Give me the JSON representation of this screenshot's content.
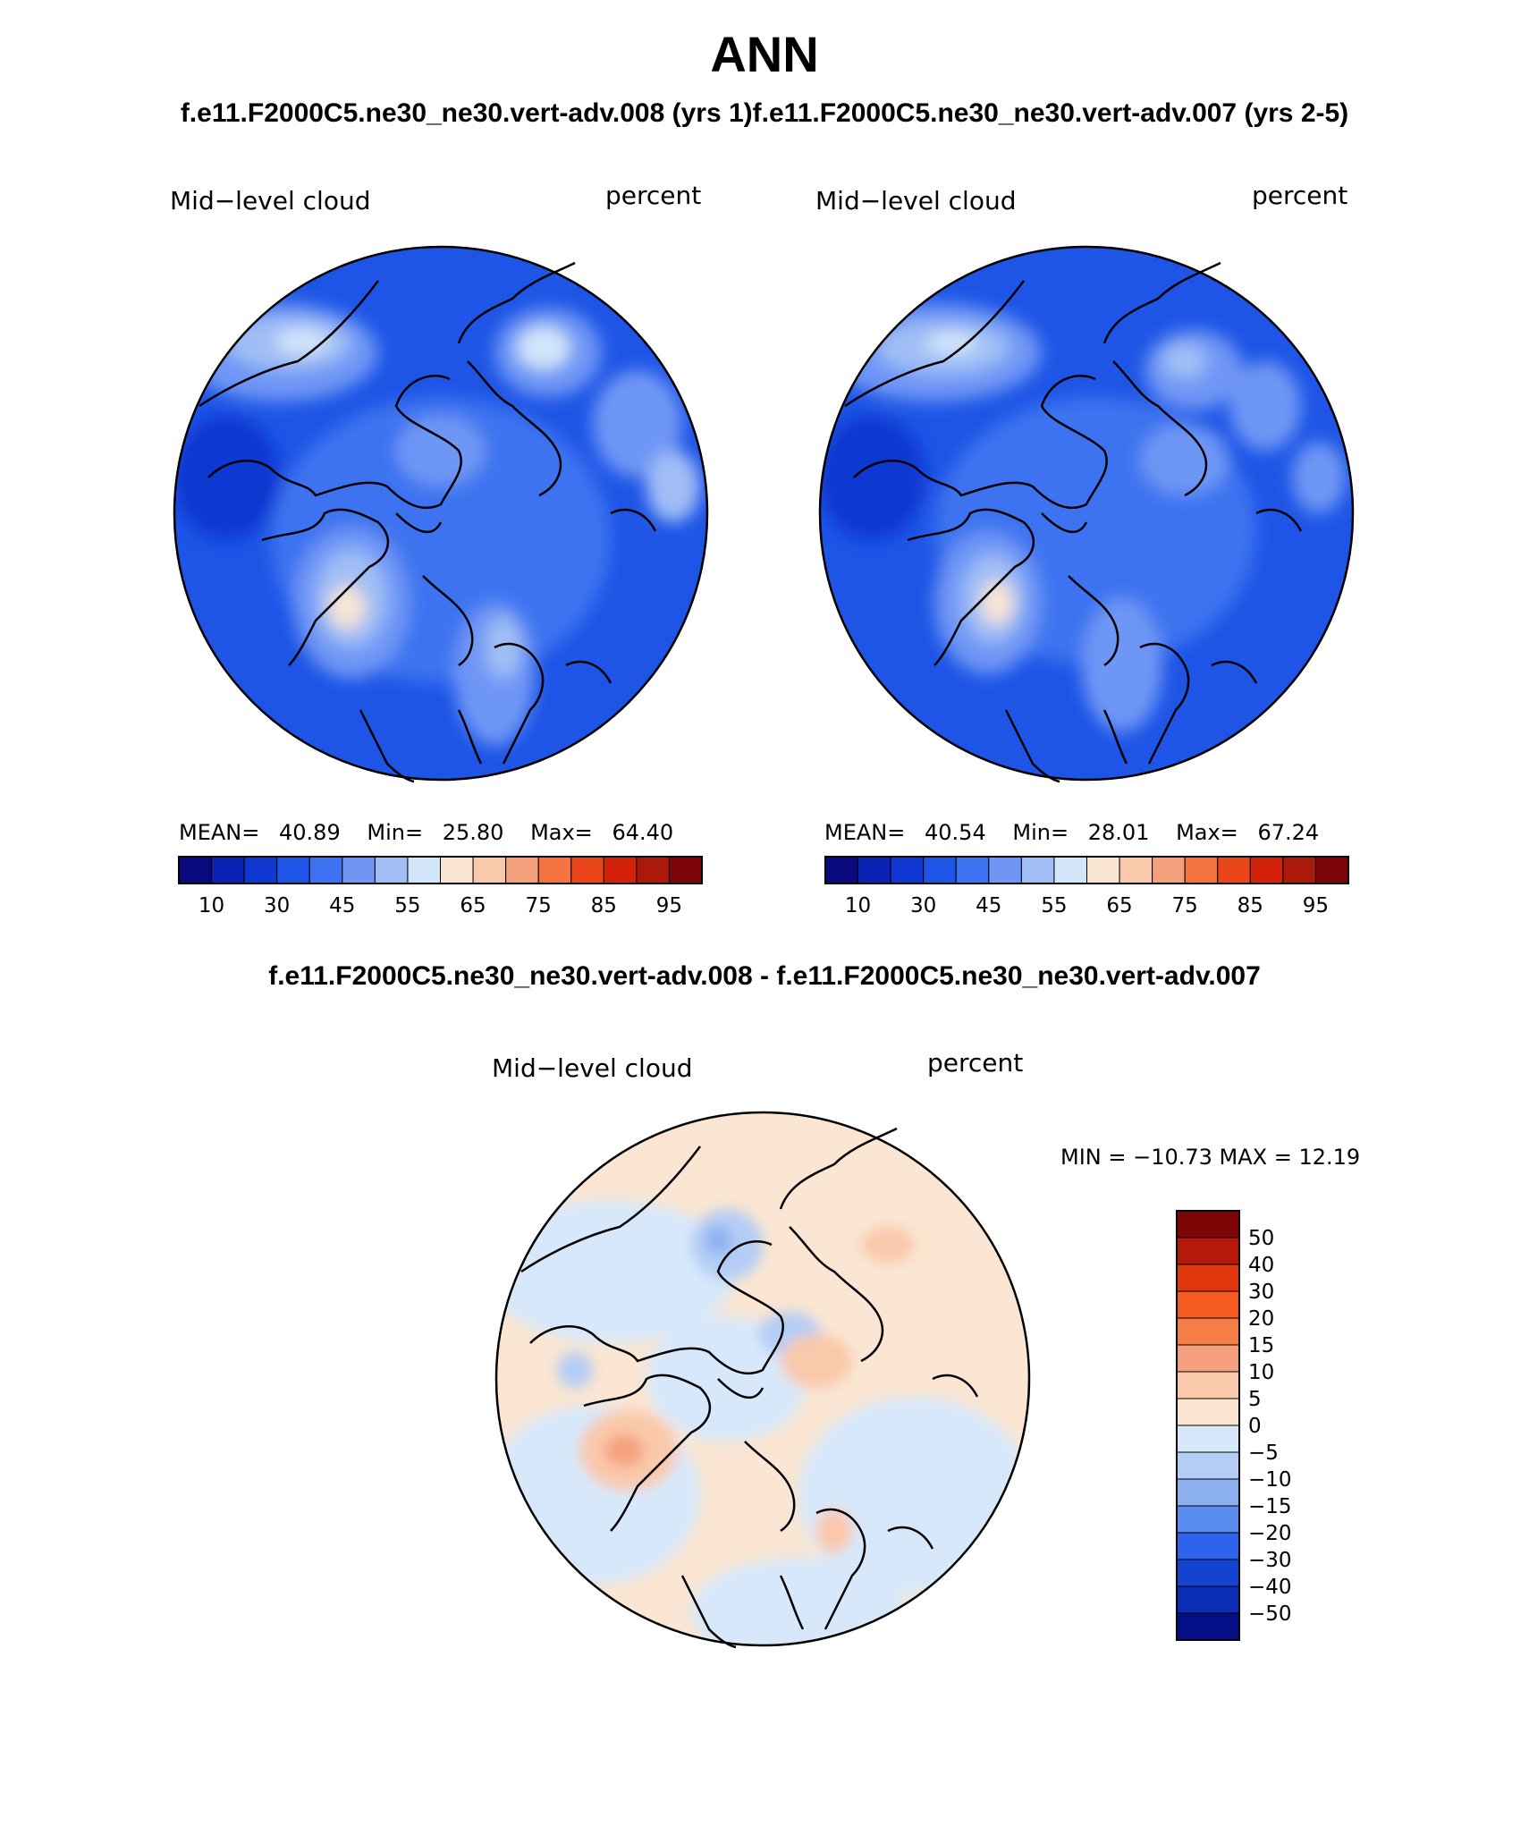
{
  "figure": {
    "title": "ANN",
    "subtitle": "f.e11.F2000C5.ne30_ne30.vert-adv.008 (yrs 1)f.e11.F2000C5.ne30_ne30.vert-adv.007 (yrs 2-5)",
    "diff_title": "f.e11.F2000C5.ne30_ne30.vert-adv.008 - f.e11.F2000C5.ne30_ne30.vert-adv.007"
  },
  "panels": [
    {
      "variable": "Mid−level cloud",
      "units": "percent",
      "mean_label": "MEAN=",
      "mean": "40.89",
      "min_label": "Min=",
      "min": "25.80",
      "max_label": "Max=",
      "max": "64.40"
    },
    {
      "variable": "Mid−level cloud",
      "units": "percent",
      "mean_label": "MEAN=",
      "mean": "40.54",
      "min_label": "Min=",
      "min": "28.01",
      "max_label": "Max=",
      "max": "67.24"
    }
  ],
  "diff_panel": {
    "variable": "Mid−level cloud",
    "units": "percent",
    "minmax": "MIN = −10.73 MAX =   12.19"
  },
  "colorbar_abs": {
    "colors": [
      "#0a0a80",
      "#0a23b4",
      "#0f37d2",
      "#1e55e6",
      "#3c73f0",
      "#6e96f5",
      "#a0bef5",
      "#d2e6fa",
      "#fae6d2",
      "#fac8aa",
      "#f5a07d",
      "#f57341",
      "#eb4619",
      "#d2230a",
      "#aa190a",
      "#7d0505"
    ],
    "labels": [
      "10",
      "30",
      "45",
      "55",
      "65",
      "75",
      "85",
      "95"
    ]
  },
  "colorbar_diff": {
    "colors": [
      "#7d0505",
      "#b4190a",
      "#e1370f",
      "#f55a23",
      "#f57d46",
      "#f5a07d",
      "#fac8aa",
      "#fae6d2",
      "#d7e8fa",
      "#b4cdf5",
      "#8cb0f0",
      "#5a8cf0",
      "#2d64eb",
      "#1443d2",
      "#0a2db4",
      "#050f87"
    ],
    "labels": [
      "50",
      "40",
      "30",
      "20",
      "15",
      "10",
      "5",
      "0",
      "−5",
      "−10",
      "−15",
      "−20",
      "−30",
      "−40",
      "−50"
    ]
  }
}
